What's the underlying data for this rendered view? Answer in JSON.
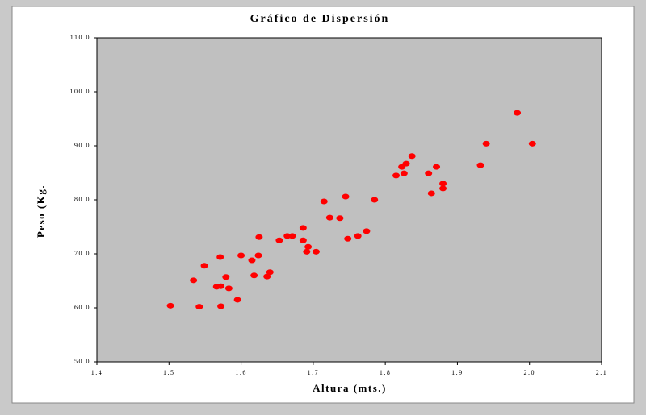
{
  "chart_data": {
    "type": "scatter",
    "title": "Gráfico de Dispersión",
    "x_label": "Altura (mts.)",
    "y_label": "Peso (Kg.",
    "color": "#ff0000",
    "x": [
      1.502,
      1.542,
      1.572,
      1.534,
      1.549,
      1.571,
      1.566,
      1.572,
      1.579,
      1.583,
      1.595,
      1.6,
      1.615,
      1.618,
      1.624,
      1.625,
      1.636,
      1.64,
      1.653,
      1.664,
      1.671,
      1.686,
      1.686,
      1.693,
      1.691,
      1.704,
      1.715,
      1.723,
      1.737,
      1.745,
      1.748,
      1.762,
      1.774,
      1.785,
      1.815,
      1.823,
      1.826,
      1.829,
      1.837,
      1.86,
      1.864,
      1.871,
      1.88,
      1.88,
      1.932,
      1.94,
      1.983,
      2.004
    ],
    "values": [
      60.4,
      60.2,
      60.3,
      65.1,
      67.8,
      69.4,
      63.9,
      64.0,
      65.7,
      63.6,
      61.5,
      69.7,
      68.8,
      66.0,
      69.7,
      73.1,
      65.8,
      66.6,
      72.5,
      73.3,
      73.3,
      74.8,
      72.5,
      71.3,
      70.4,
      70.4,
      79.7,
      76.7,
      76.6,
      80.6,
      72.8,
      73.3,
      74.2,
      80.0,
      84.5,
      86.1,
      84.9,
      86.7,
      88.1,
      84.9,
      81.2,
      86.1,
      82.1,
      83.0,
      86.4,
      90.4,
      96.1,
      90.4
    ],
    "xlim": [
      1.4,
      2.1
    ],
    "xticks": [
      1.4,
      1.5,
      1.6,
      1.7,
      1.8,
      1.9,
      {
        "value": 2,
        "label": "2.0"
      },
      2.1
    ],
    "ylim": [
      50,
      110
    ],
    "yticks": [
      {
        "value": 50,
        "label": "50.0"
      },
      {
        "value": 60,
        "label": "60.0"
      },
      {
        "value": 70,
        "label": "70.0"
      },
      {
        "value": 80,
        "label": "80.0"
      },
      {
        "value": 90,
        "label": "90.0"
      },
      {
        "value": 100,
        "label": "100.0"
      },
      {
        "value": 110,
        "label": "110.0"
      }
    ]
  }
}
